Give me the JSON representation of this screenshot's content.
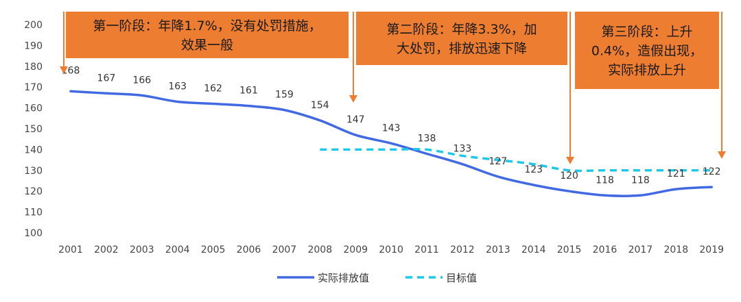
{
  "chart_data": {
    "type": "line",
    "title": "",
    "xlabel": "",
    "ylabel": "",
    "x": [
      2001,
      2002,
      2003,
      2004,
      2005,
      2006,
      2007,
      2008,
      2009,
      2010,
      2011,
      2012,
      2013,
      2014,
      2015,
      2016,
      2017,
      2018,
      2019
    ],
    "ylim": [
      100,
      200
    ],
    "yticks": [
      100,
      110,
      120,
      130,
      140,
      150,
      160,
      170,
      180,
      190,
      200
    ],
    "grid": false,
    "legend_position": "bottom",
    "series": [
      {
        "name": "实际排放值",
        "style": "solid",
        "color": "#4169e1",
        "values": [
          168,
          167,
          166,
          163,
          162,
          161,
          159,
          154,
          147,
          143,
          138,
          133,
          127,
          123,
          120,
          118,
          118,
          121,
          122
        ],
        "labels": [
          "168",
          "167",
          "166",
          "163",
          "162",
          "161",
          "159",
          "154",
          "147",
          "143",
          "138",
          "133",
          "127",
          "123",
          "120",
          "118",
          "118",
          "121",
          "122"
        ]
      },
      {
        "name": "目标值",
        "style": "dashed",
        "color": "#1ec8e8",
        "values": [
          null,
          null,
          null,
          null,
          null,
          null,
          null,
          140,
          140,
          140,
          140,
          137,
          135,
          133,
          130,
          130,
          130,
          130,
          130
        ]
      }
    ],
    "annotations": [
      {
        "lines": [
          "第一阶段：年降1.7%，没有处罚措施，",
          "效果一般"
        ],
        "color": "#ed7d31",
        "arrow_x": 2001
      },
      {
        "lines": [
          "第二阶段：年降3.3%，加",
          "大处罚，排放迅速下降"
        ],
        "color": "#ed7d31",
        "arrow_x": 2009
      },
      {
        "lines": [
          "第三阶段：上升",
          "0.4%，造假出现，",
          "实际排放上升"
        ],
        "color": "#ed7d31",
        "arrow_x": 2015
      }
    ],
    "extra_arrow_x": 2019
  }
}
